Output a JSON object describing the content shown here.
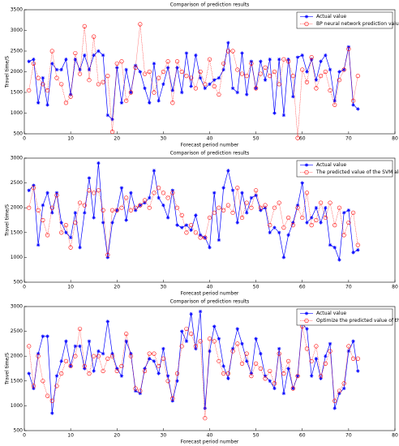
{
  "chart_data": [
    {
      "type": "line",
      "title": "Comparison of prediction results",
      "xlabel": "Forecast period number",
      "ylabel": "Travel time/S",
      "x": [
        1,
        2,
        3,
        4,
        5,
        6,
        7,
        8,
        9,
        10,
        11,
        12,
        13,
        14,
        15,
        16,
        17,
        18,
        19,
        20,
        21,
        22,
        23,
        24,
        25,
        26,
        27,
        28,
        29,
        30,
        31,
        32,
        33,
        34,
        35,
        36,
        37,
        38,
        39,
        40,
        41,
        42,
        43,
        44,
        45,
        46,
        47,
        48,
        49,
        50,
        51,
        52,
        53,
        54,
        55,
        56,
        57,
        58,
        59,
        60,
        61,
        62,
        63,
        64,
        65,
        66,
        67,
        68,
        69,
        70,
        71,
        72
      ],
      "xlim": [
        0,
        80
      ],
      "xticks": [
        0,
        10,
        20,
        30,
        40,
        50,
        60,
        70,
        80
      ],
      "ylim": [
        500,
        3500
      ],
      "yticks": [
        500,
        1000,
        1500,
        2000,
        2500,
        3000,
        3500
      ],
      "legend": "upper right",
      "series": [
        {
          "name": "Actual value",
          "color": "#0000ff",
          "marker": "star",
          "line_style": "solid",
          "values": [
            2250,
            2300,
            1250,
            1850,
            1200,
            2200,
            2050,
            2050,
            2300,
            1450,
            2300,
            2050,
            2400,
            2050,
            2400,
            2500,
            2400,
            950,
            850,
            2100,
            1250,
            2050,
            1500,
            2150,
            2000,
            1600,
            1250,
            2200,
            1300,
            1700,
            2100,
            1550,
            2100,
            1500,
            2450,
            1650,
            2400,
            1850,
            1600,
            1700,
            1800,
            1850,
            2050,
            2700,
            1600,
            1500,
            2450,
            1450,
            2250,
            1600,
            2250,
            1800,
            2300,
            1000,
            2300,
            950,
            2300,
            1400,
            2350,
            2400,
            2000,
            2300,
            1800,
            2250,
            2400,
            2050,
            1300,
            2000,
            2050,
            2600,
            1200,
            1100
          ]
        },
        {
          "name": "BP neural network prediction value",
          "color": "#ff0000",
          "marker": "circle",
          "line_style": "dotted",
          "values": [
            1550,
            2200,
            1850,
            1700,
            1550,
            2500,
            1850,
            1700,
            1250,
            1400,
            2450,
            1950,
            3100,
            1800,
            2850,
            1700,
            1750,
            1900,
            550,
            2200,
            2250,
            1300,
            1500,
            2100,
            3150,
            1950,
            2000,
            1500,
            1850,
            2000,
            2250,
            1250,
            2250,
            2000,
            1900,
            1850,
            1600,
            2000,
            1700,
            2300,
            1650,
            1450,
            2200,
            2500,
            2500,
            2050,
            1950,
            1900,
            2200,
            1600,
            1950,
            2100,
            1900,
            2000,
            1700,
            2300,
            2250,
            1900,
            400,
            2050,
            1750,
            2350,
            1600,
            1900,
            2000,
            1550,
            1200,
            1800,
            2050,
            2550,
            1300,
            1900
          ]
        }
      ]
    },
    {
      "type": "line",
      "title": "Comparison of prediction results",
      "xlabel": "Forecast period number",
      "ylabel": "Travel time/S",
      "x": [
        1,
        2,
        3,
        4,
        5,
        6,
        7,
        8,
        9,
        10,
        11,
        12,
        13,
        14,
        15,
        16,
        17,
        18,
        19,
        20,
        21,
        22,
        23,
        24,
        25,
        26,
        27,
        28,
        29,
        30,
        31,
        32,
        33,
        34,
        35,
        36,
        37,
        38,
        39,
        40,
        41,
        42,
        43,
        44,
        45,
        46,
        47,
        48,
        49,
        50,
        51,
        52,
        53,
        54,
        55,
        56,
        57,
        58,
        59,
        60,
        61,
        62,
        63,
        64,
        65,
        66,
        67,
        68,
        69,
        70,
        71,
        72
      ],
      "xlim": [
        0,
        80
      ],
      "xticks": [
        0,
        10,
        20,
        30,
        40,
        50,
        60,
        70,
        80
      ],
      "ylim": [
        500,
        3000
      ],
      "yticks": [
        500,
        1000,
        1500,
        2000,
        2500,
        3000
      ],
      "legend": "upper right",
      "series": [
        {
          "name": "Actual value",
          "color": "#0000ff",
          "marker": "star",
          "line_style": "solid",
          "values": [
            2350,
            2450,
            1250,
            2050,
            2300,
            1900,
            2300,
            1700,
            1500,
            1400,
            1900,
            1200,
            1900,
            2600,
            1800,
            2900,
            1700,
            1000,
            1700,
            1950,
            2400,
            1750,
            2300,
            1950,
            2050,
            2100,
            2200,
            2750,
            2200,
            2050,
            1800,
            2350,
            1650,
            1600,
            1650,
            1550,
            1850,
            1450,
            1400,
            1200,
            2300,
            1350,
            2400,
            2750,
            2350,
            1700,
            2300,
            1900,
            2200,
            2250,
            1950,
            2000,
            1500,
            1600,
            1500,
            1000,
            1450,
            1700,
            2050,
            2500,
            1700,
            1800,
            2000,
            1700,
            2000,
            1250,
            1200,
            950,
            1900,
            1950,
            1100,
            1150
          ]
        },
        {
          "name": "The predicted value of the SVM algorithm",
          "color": "#ff0000",
          "marker": "circle",
          "line_style": "dotted",
          "values": [
            2000,
            2400,
            1950,
            1750,
            1450,
            2000,
            2250,
            1500,
            1650,
            1200,
            1700,
            2100,
            2050,
            2350,
            2300,
            2350,
            1950,
            1050,
            1950,
            1950,
            2000,
            2200,
            1950,
            2000,
            2050,
            2150,
            2000,
            2300,
            2400,
            2300,
            2200,
            2300,
            2000,
            1850,
            1500,
            1650,
            1500,
            1400,
            1400,
            1800,
            1900,
            2000,
            1950,
            2050,
            1900,
            2400,
            1800,
            2100,
            2000,
            2350,
            2000,
            2050,
            1650,
            2000,
            2100,
            1600,
            1800,
            1650,
            2000,
            1800,
            2300,
            1650,
            1750,
            2100,
            1800,
            2100,
            1650,
            2000,
            1450,
            1700,
            1900,
            1250
          ]
        }
      ]
    },
    {
      "type": "line",
      "title": "Comparison of prediction results",
      "xlabel": "Forecast period number",
      "ylabel": "Travel time/S",
      "x": [
        1,
        2,
        3,
        4,
        5,
        6,
        7,
        8,
        9,
        10,
        11,
        12,
        13,
        14,
        15,
        16,
        17,
        18,
        19,
        20,
        21,
        22,
        23,
        24,
        25,
        26,
        27,
        28,
        29,
        30,
        31,
        32,
        33,
        34,
        35,
        36,
        37,
        38,
        39,
        40,
        41,
        42,
        43,
        44,
        45,
        46,
        47,
        48,
        49,
        50,
        51,
        52,
        53,
        54,
        55,
        56,
        57,
        58,
        59,
        60,
        61,
        62,
        63,
        64,
        65,
        66,
        67,
        68,
        69,
        70,
        71,
        72
      ],
      "xlim": [
        0,
        80
      ],
      "xticks": [
        0,
        10,
        20,
        30,
        40,
        50,
        60,
        70,
        80
      ],
      "ylim": [
        500,
        3000
      ],
      "yticks": [
        500,
        1000,
        1500,
        2000,
        2500,
        3000
      ],
      "legend": "upper right",
      "series": [
        {
          "name": "Actual value",
          "color": "#0000ff",
          "marker": "star",
          "line_style": "solid",
          "values": [
            1650,
            1350,
            2050,
            2400,
            2400,
            850,
            1600,
            1900,
            2300,
            1800,
            2200,
            2200,
            1750,
            2300,
            1700,
            2100,
            2050,
            2700,
            2050,
            1750,
            1600,
            2300,
            2050,
            1300,
            1250,
            1750,
            1950,
            1900,
            1650,
            2150,
            1600,
            1100,
            1500,
            2500,
            2300,
            2850,
            2150,
            2900,
            950,
            2100,
            2600,
            2350,
            1800,
            1550,
            2150,
            2550,
            2250,
            1900,
            1650,
            2350,
            2050,
            1600,
            1500,
            1350,
            2150,
            1250,
            1750,
            1350,
            1600,
            2650,
            2550,
            1600,
            1950,
            1550,
            2000,
            2250,
            950,
            1250,
            1350,
            2100,
            2300,
            1700
          ]
        },
        {
          "name": "Optimize the predicted value of the SVM algorithm",
          "color": "#ff0000",
          "marker": "circle",
          "line_style": "dotted",
          "values": [
            2200,
            1400,
            2000,
            1500,
            1200,
            1100,
            1400,
            1650,
            1900,
            1800,
            2000,
            2550,
            1800,
            1650,
            2000,
            2000,
            1700,
            1950,
            2000,
            1700,
            1800,
            2450,
            2000,
            1350,
            1300,
            1700,
            2050,
            2050,
            1800,
            1950,
            1500,
            1150,
            1650,
            2200,
            2550,
            2450,
            2200,
            2300,
            750,
            2350,
            2300,
            1900,
            1650,
            1650,
            2100,
            2250,
            1850,
            2050,
            1600,
            1850,
            1750,
            1550,
            1700,
            1450,
            2050,
            1650,
            1900,
            1350,
            1600,
            2600,
            2150,
            1900,
            2200,
            1600,
            1850,
            2100,
            1100,
            1300,
            1450,
            2200,
            1950,
            1950
          ]
        }
      ]
    }
  ]
}
